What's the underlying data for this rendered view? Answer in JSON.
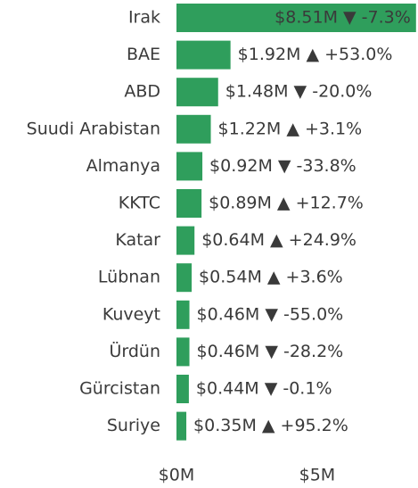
{
  "chart_data": {
    "type": "bar",
    "orientation": "horizontal",
    "categories": [
      "Irak",
      "BAE",
      "ABD",
      "Suudi Arabistan",
      "Almanya",
      "KKTC",
      "Katar",
      "Lübnan",
      "Kuveyt",
      "Ürdün",
      "Gürcistan",
      "Suriye"
    ],
    "values": [
      8.51,
      1.92,
      1.48,
      1.22,
      0.92,
      0.89,
      0.64,
      0.54,
      0.46,
      0.46,
      0.44,
      0.35
    ],
    "value_labels": [
      "$8.51M ▼ -7.3%",
      "$1.92M ▲ +53.0%",
      "$1.48M ▼ -20.0%",
      "$1.22M ▲ +3.1%",
      "$0.92M ▼ -33.8%",
      "$0.89M ▲ +12.7%",
      "$0.64M ▲ +24.9%",
      "$0.54M ▲ +3.6%",
      "$0.46M ▼ -55.0%",
      "$0.46M ▼ -28.2%",
      "$0.44M ▼ -0.1%",
      "$0.35M ▲ +95.2%"
    ],
    "color": "#2f9e5c",
    "xlim": [
      0,
      8.58
    ],
    "xticks": [
      {
        "value": 0,
        "label": "$0M"
      },
      {
        "value": 5,
        "label": "$5M"
      }
    ]
  }
}
